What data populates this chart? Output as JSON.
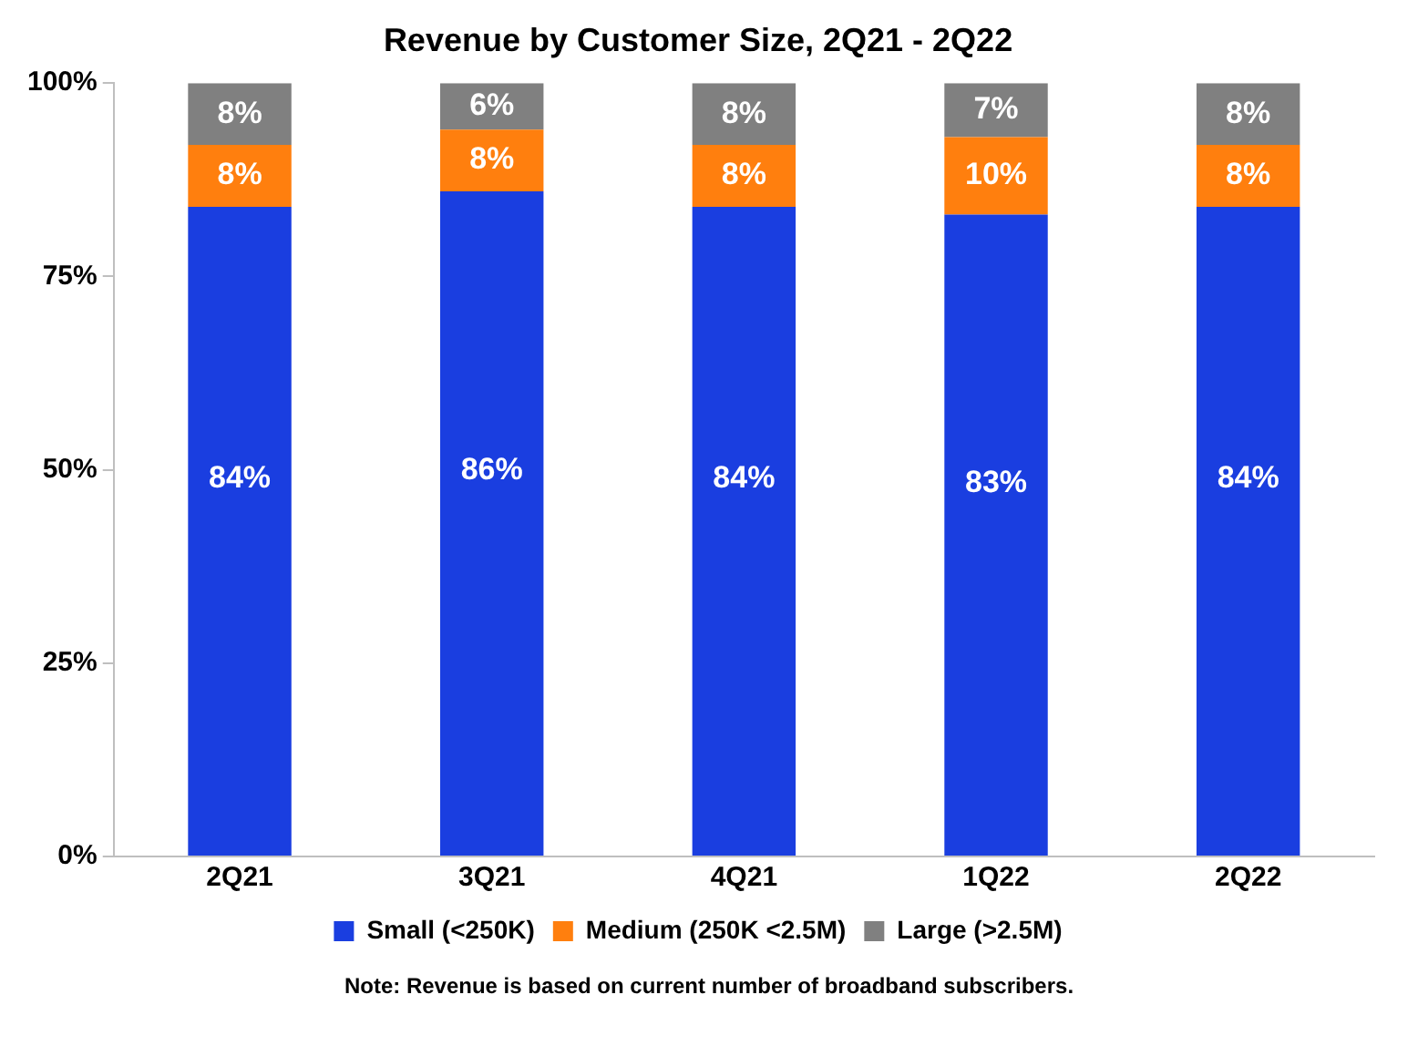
{
  "chart_data": {
    "type": "bar",
    "title": "Revenue by Customer Size, 2Q21 - 2Q22",
    "stacked": true,
    "categories": [
      "2Q21",
      "3Q21",
      "4Q21",
      "1Q22",
      "2Q22"
    ],
    "series": [
      {
        "name": "Small (<250K)",
        "color": "#1a3ee0",
        "values": [
          84,
          86,
          84,
          83,
          84
        ],
        "value_labels": [
          "84%",
          "86%",
          "84%",
          "83%",
          "84%"
        ]
      },
      {
        "name": "Medium (250K <2.5M)",
        "color": "#ff7f0e",
        "values": [
          8,
          8,
          8,
          10,
          8
        ],
        "value_labels": [
          "8%",
          "8%",
          "8%",
          "10%",
          "8%"
        ]
      },
      {
        "name": "Large (>2.5M)",
        "color": "#808080",
        "values": [
          8,
          6,
          8,
          7,
          8
        ],
        "value_labels": [
          "8%",
          "6%",
          "8%",
          "7%",
          "8%"
        ]
      }
    ],
    "ylim": [
      0,
      100
    ],
    "yticks": [
      {
        "value": 0,
        "label": "0%"
      },
      {
        "value": 25,
        "label": "25%"
      },
      {
        "value": 50,
        "label": "50%"
      },
      {
        "value": 75,
        "label": "75%"
      },
      {
        "value": 100,
        "label": "100%"
      }
    ],
    "grid": false,
    "legend": "bottom",
    "annotations": [
      "Note: Revenue is based on current number of broadband subscribers."
    ]
  }
}
